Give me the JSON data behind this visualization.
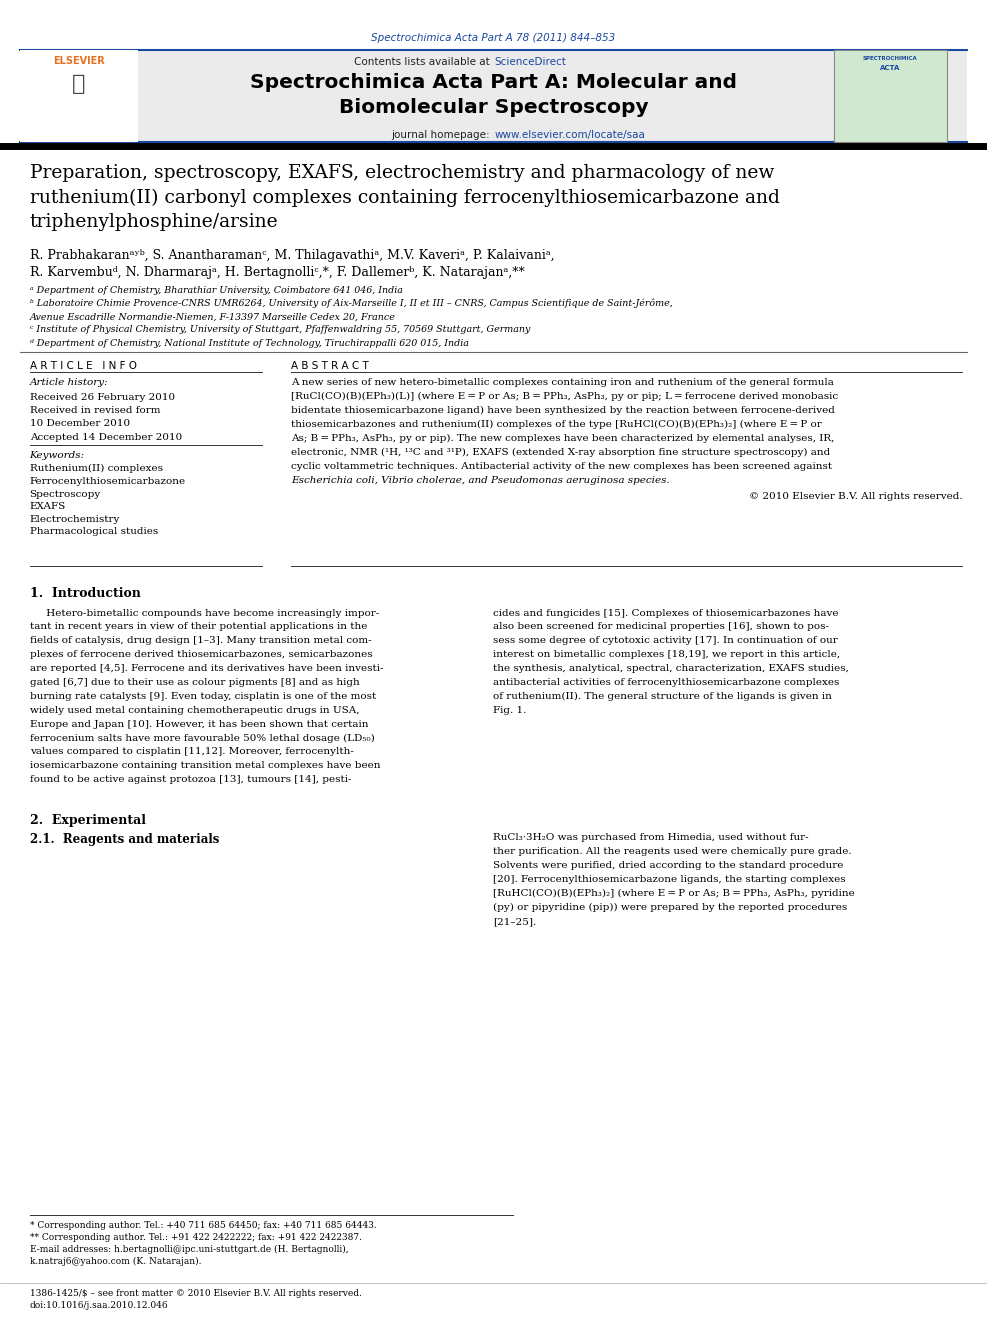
{
  "page_width": 9.92,
  "page_height": 13.23,
  "background_color": "#ffffff",
  "top_url": "Spectrochimica Acta Part A 78 (2011) 844–853",
  "top_url_color": "#1a47a0",
  "header_sciencedirect_color": "#1a47a0",
  "journal_title_line1": "Spectrochimica Acta Part A: Molecular and",
  "journal_title_line2": "Biomolecular Spectroscopy",
  "journal_homepage_url": "www.elsevier.com/locate/saa",
  "journal_homepage_url_color": "#1a47a0",
  "article_title_line1": "Preparation, spectroscopy, EXAFS, electrochemistry and pharmacology of new",
  "article_title_line2": "ruthenium(II) carbonyl complexes containing ferrocenylthiosemicarbazone and",
  "article_title_line3": "triphenylphosphine/arsine",
  "author_line1": "R. Prabhakaranᵃʸᵇ, S. Anantharamanᶜ, M. Thilagavathiᵃ, M.V. Kaveriᵃ, P. Kalaivaniᵃ,",
  "author_line2": "R. Karvembuᵈ, N. Dharmarajᵃ, H. Bertagnolliᶜ,*, F. Dallemerᵇ, K. Natarajanᵃ,**",
  "affil_a": "ᵃ Department of Chemistry, Bharathiar University, Coimbatore 641 046, India",
  "affil_b1": "ᵇ Laboratoire Chimie Provence-CNRS UMR6264, University of Aix-Marseille I, II et III – CNRS, Campus Scientifique de Saint-Jérôme,",
  "affil_b2": "Avenue Escadrille Normandie-Niemen, F-13397 Marseille Cedex 20, France",
  "affil_c": "ᶜ Institute of Physical Chemistry, University of Stuttgart, Pfaffenwaldring 55, 70569 Stuttgart, Germany",
  "affil_d": "ᵈ Department of Chemistry, National Institute of Technology, Tiruchirappalli 620 015, India",
  "article_info_header": "A R T I C L E   I N F O",
  "abstract_header": "A B S T R A C T",
  "received": "Received 26 February 2010",
  "revised": "Received in revised form",
  "revised2": "10 December 2010",
  "accepted": "Accepted 14 December 2010",
  "keywords": [
    "Ruthenium(II) complexes",
    "Ferrocenylthiosemicarbazone",
    "Spectroscopy",
    "EXAFS",
    "Electrochemistry",
    "Pharmacological studies"
  ],
  "abstract_text1": "A new series of new hetero-bimetallic complexes containing iron and ruthenium of the general formula",
  "abstract_text2": "[RuCl(CO)(B)(EPh₃)(L)] (where E = P or As; B = PPh₃, AsPh₃, py or pip; L = ferrocene derived monobasic",
  "abstract_text3": "bidentate thiosemicarbazone ligand) have been synthesized by the reaction between ferrocene-derived",
  "abstract_text4": "thiosemicarbazones and ruthenium(II) complexes of the type [RuHCl(CO)(B)(EPh₃)₂] (where E = P or",
  "abstract_text5": "As; B = PPh₃, AsPh₃, py or pip). The new complexes have been characterized by elemental analyses, IR,",
  "abstract_text6": "electronic, NMR (¹H, ¹³C and ³¹P), EXAFS (extended X-ray absorption fine structure spectroscopy) and",
  "abstract_text7": "cyclic voltammetric techniques. Antibacterial activity of the new complexes has been screened against",
  "abstract_text8": "Escherichia coli, Vibrio cholerae, and Pseudomonas aeruginosa species.",
  "copyright": "© 2010 Elsevier B.V. All rights reserved.",
  "intro_header": "1.  Introduction",
  "intro_indent": "     Hetero-bimetallic compounds have become increasingly important in recent years in view of their potential applications in the fields of catalysis, drug design [1–3]. Many transition metal complexes of ferrocene derived thiosemicarbazones, semicarbazones are reported [4,5]. Ferrocene and its derivatives have been investigated [6,7] due to their use as colour pigments [8] and as high burning rate catalysts [9]. Even today, cisplatin is one of the most widely used metal containing chemotherapeutic drugs in USA, Europe and Japan [10]. However, it has been shown that certain ferrocenium salts have more favourable 50% lethal dosage (LD₅₀) values compared to cisplatin [11,12]. Moreover, ferrocenylth-iosemicarbazone containing transition metal complexes have been found to be active against protozoa [13], tumours [14], pesti-",
  "intro_col2": "cides and fungicides [15]. Complexes of thiosemicarbazones have also been screened for medicinal properties [16], shown to possess some degree of cytotoxic activity [17]. In continuation of our interest on bimetallic complexes [18,19], we report in this article, the synthesis, analytical, spectral, characterization, EXAFS studies, antibacterial activities of ferrocenylthiosemicarbazone complexes of ruthenium(II). The general structure of the ligands is given in Fig. 1.",
  "section2_header": "2.  Experimental",
  "section21_header": "2.1.  Reagents and materials",
  "section21_col2": "RuCl₃·3H₂O was purchased from Himedia, used without further purification. All the reagents used were chemically pure grade. Solvents were purified, dried according to the standard procedure [20]. Ferrocenylthiosemicarbazone ligands, the starting complexes [RuHCl(CO)(B)(EPh₃)₂] (where E = P or As; B = PPh₃, AsPh₃, pyridine (py) or pipyridine (pip)) were prepared by the reported procedures [21–25].",
  "footnote_star": "* Corresponding author. Tel.: +40 711 685 64450; fax: +40 711 685 64443.",
  "footnote_dstar": "** Corresponding author. Tel.: +91 422 2422222; fax: +91 422 2422387.",
  "footnote_email1": "E-mail addresses: h.bertagnolli@ipc.uni-stuttgart.de (H. Bertagnolli),",
  "footnote_email2": "k.natraj6@yahoo.com (K. Natarajan).",
  "bottom_line1": "1386-1425/$ – see front matter © 2010 Elsevier B.V. All rights reserved.",
  "bottom_line2": "doi:10.1016/j.saa.2010.12.046",
  "blue": "#1a47a0",
  "orange": "#e87020"
}
